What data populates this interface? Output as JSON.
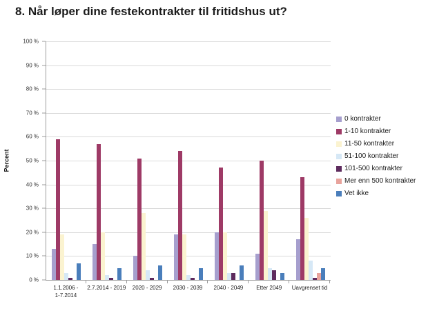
{
  "title": "8. Når løper dine festekontrakter til fritidshus ut?",
  "chart_data": {
    "type": "bar",
    "title": "8. Når løper dine festekontrakter til fritidshus ut?",
    "xlabel": "",
    "ylabel": "Percent",
    "ylim": [
      0,
      100
    ],
    "grid": true,
    "legend_position": "right",
    "yticks": [
      "0 %",
      "10 %",
      "20 %",
      "30 %",
      "40 %",
      "50 %",
      "60 %",
      "70 %",
      "80 %",
      "90 %",
      "100 %"
    ],
    "categories": [
      "1.1.2006 -\n1-7.2014",
      "2.7.2014 - 2019",
      "2020 - 2029",
      "2030 - 2039",
      "2040 - 2049",
      "Etter 2049",
      "Uavgrenset tid"
    ],
    "series": [
      {
        "name": "0 kontrakter",
        "color": "#a69fce",
        "values": [
          13,
          15,
          10,
          19,
          20,
          11,
          17
        ]
      },
      {
        "name": "1-10 kontrakter",
        "color": "#9e3a66",
        "values": [
          59,
          57,
          51,
          54,
          47,
          50,
          43
        ]
      },
      {
        "name": "11-50 kontrakter",
        "color": "#fbf3d0",
        "values": [
          19,
          20,
          28,
          19,
          20,
          29,
          26
        ]
      },
      {
        "name": "51-100 kontrakter",
        "color": "#d6e8f6",
        "values": [
          3,
          2,
          4,
          2,
          3,
          5,
          8
        ]
      },
      {
        "name": "101-500 kontrakter",
        "color": "#5e2b5e",
        "values": [
          1,
          1,
          1,
          1,
          3,
          4,
          1
        ]
      },
      {
        "name": "Mer enn 500 kontrakter",
        "color": "#e8a39c",
        "values": [
          0,
          0,
          0,
          0,
          0,
          0,
          3
        ]
      },
      {
        "name": "Vet ikke",
        "color": "#4a7ebb",
        "values": [
          7,
          5,
          6,
          5,
          6,
          3,
          5
        ]
      }
    ],
    "axis_color": "#9b9b9b",
    "gridline_color": "#d9d9d9"
  }
}
